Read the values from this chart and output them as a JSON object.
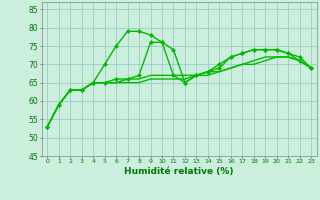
{
  "x": [
    0,
    1,
    2,
    3,
    4,
    5,
    6,
    7,
    8,
    9,
    10,
    11,
    12,
    13,
    14,
    15,
    16,
    17,
    18,
    19,
    20,
    21,
    22,
    23
  ],
  "line1": [
    53,
    59,
    63,
    63,
    65,
    70,
    75,
    79,
    79,
    78,
    76,
    74,
    65,
    67,
    68,
    69,
    72,
    73,
    74,
    74,
    74,
    73,
    72,
    69
  ],
  "line2": [
    53,
    59,
    63,
    63,
    65,
    65,
    65,
    66,
    66,
    67,
    67,
    67,
    67,
    67,
    68,
    68,
    69,
    70,
    71,
    72,
    72,
    72,
    71,
    69
  ],
  "line3": [
    53,
    59,
    63,
    63,
    65,
    65,
    65,
    65,
    65,
    66,
    66,
    66,
    66,
    67,
    67,
    68,
    69,
    70,
    70,
    71,
    72,
    72,
    71,
    69
  ],
  "line4": [
    53,
    59,
    63,
    63,
    65,
    65,
    66,
    66,
    67,
    76,
    76,
    67,
    65,
    67,
    68,
    70,
    72,
    73,
    74,
    74,
    74,
    73,
    71,
    69
  ],
  "line_color": "#00bb00",
  "bg_color": "#cceedd",
  "grid_color": "#99cccc",
  "xlabel": "Humidité relative (%)",
  "xlabel_color": "#007700",
  "tick_color": "#007700",
  "ylim": [
    45,
    87
  ],
  "yticks": [
    45,
    50,
    55,
    60,
    65,
    70,
    75,
    80,
    85
  ],
  "xlim": [
    -0.5,
    23.5
  ],
  "xticks": [
    0,
    1,
    2,
    3,
    4,
    5,
    6,
    7,
    8,
    9,
    10,
    11,
    12,
    13,
    14,
    15,
    16,
    17,
    18,
    19,
    20,
    21,
    22,
    23
  ],
  "marker": "D",
  "marker_size": 2.5,
  "linewidth": 1.0
}
